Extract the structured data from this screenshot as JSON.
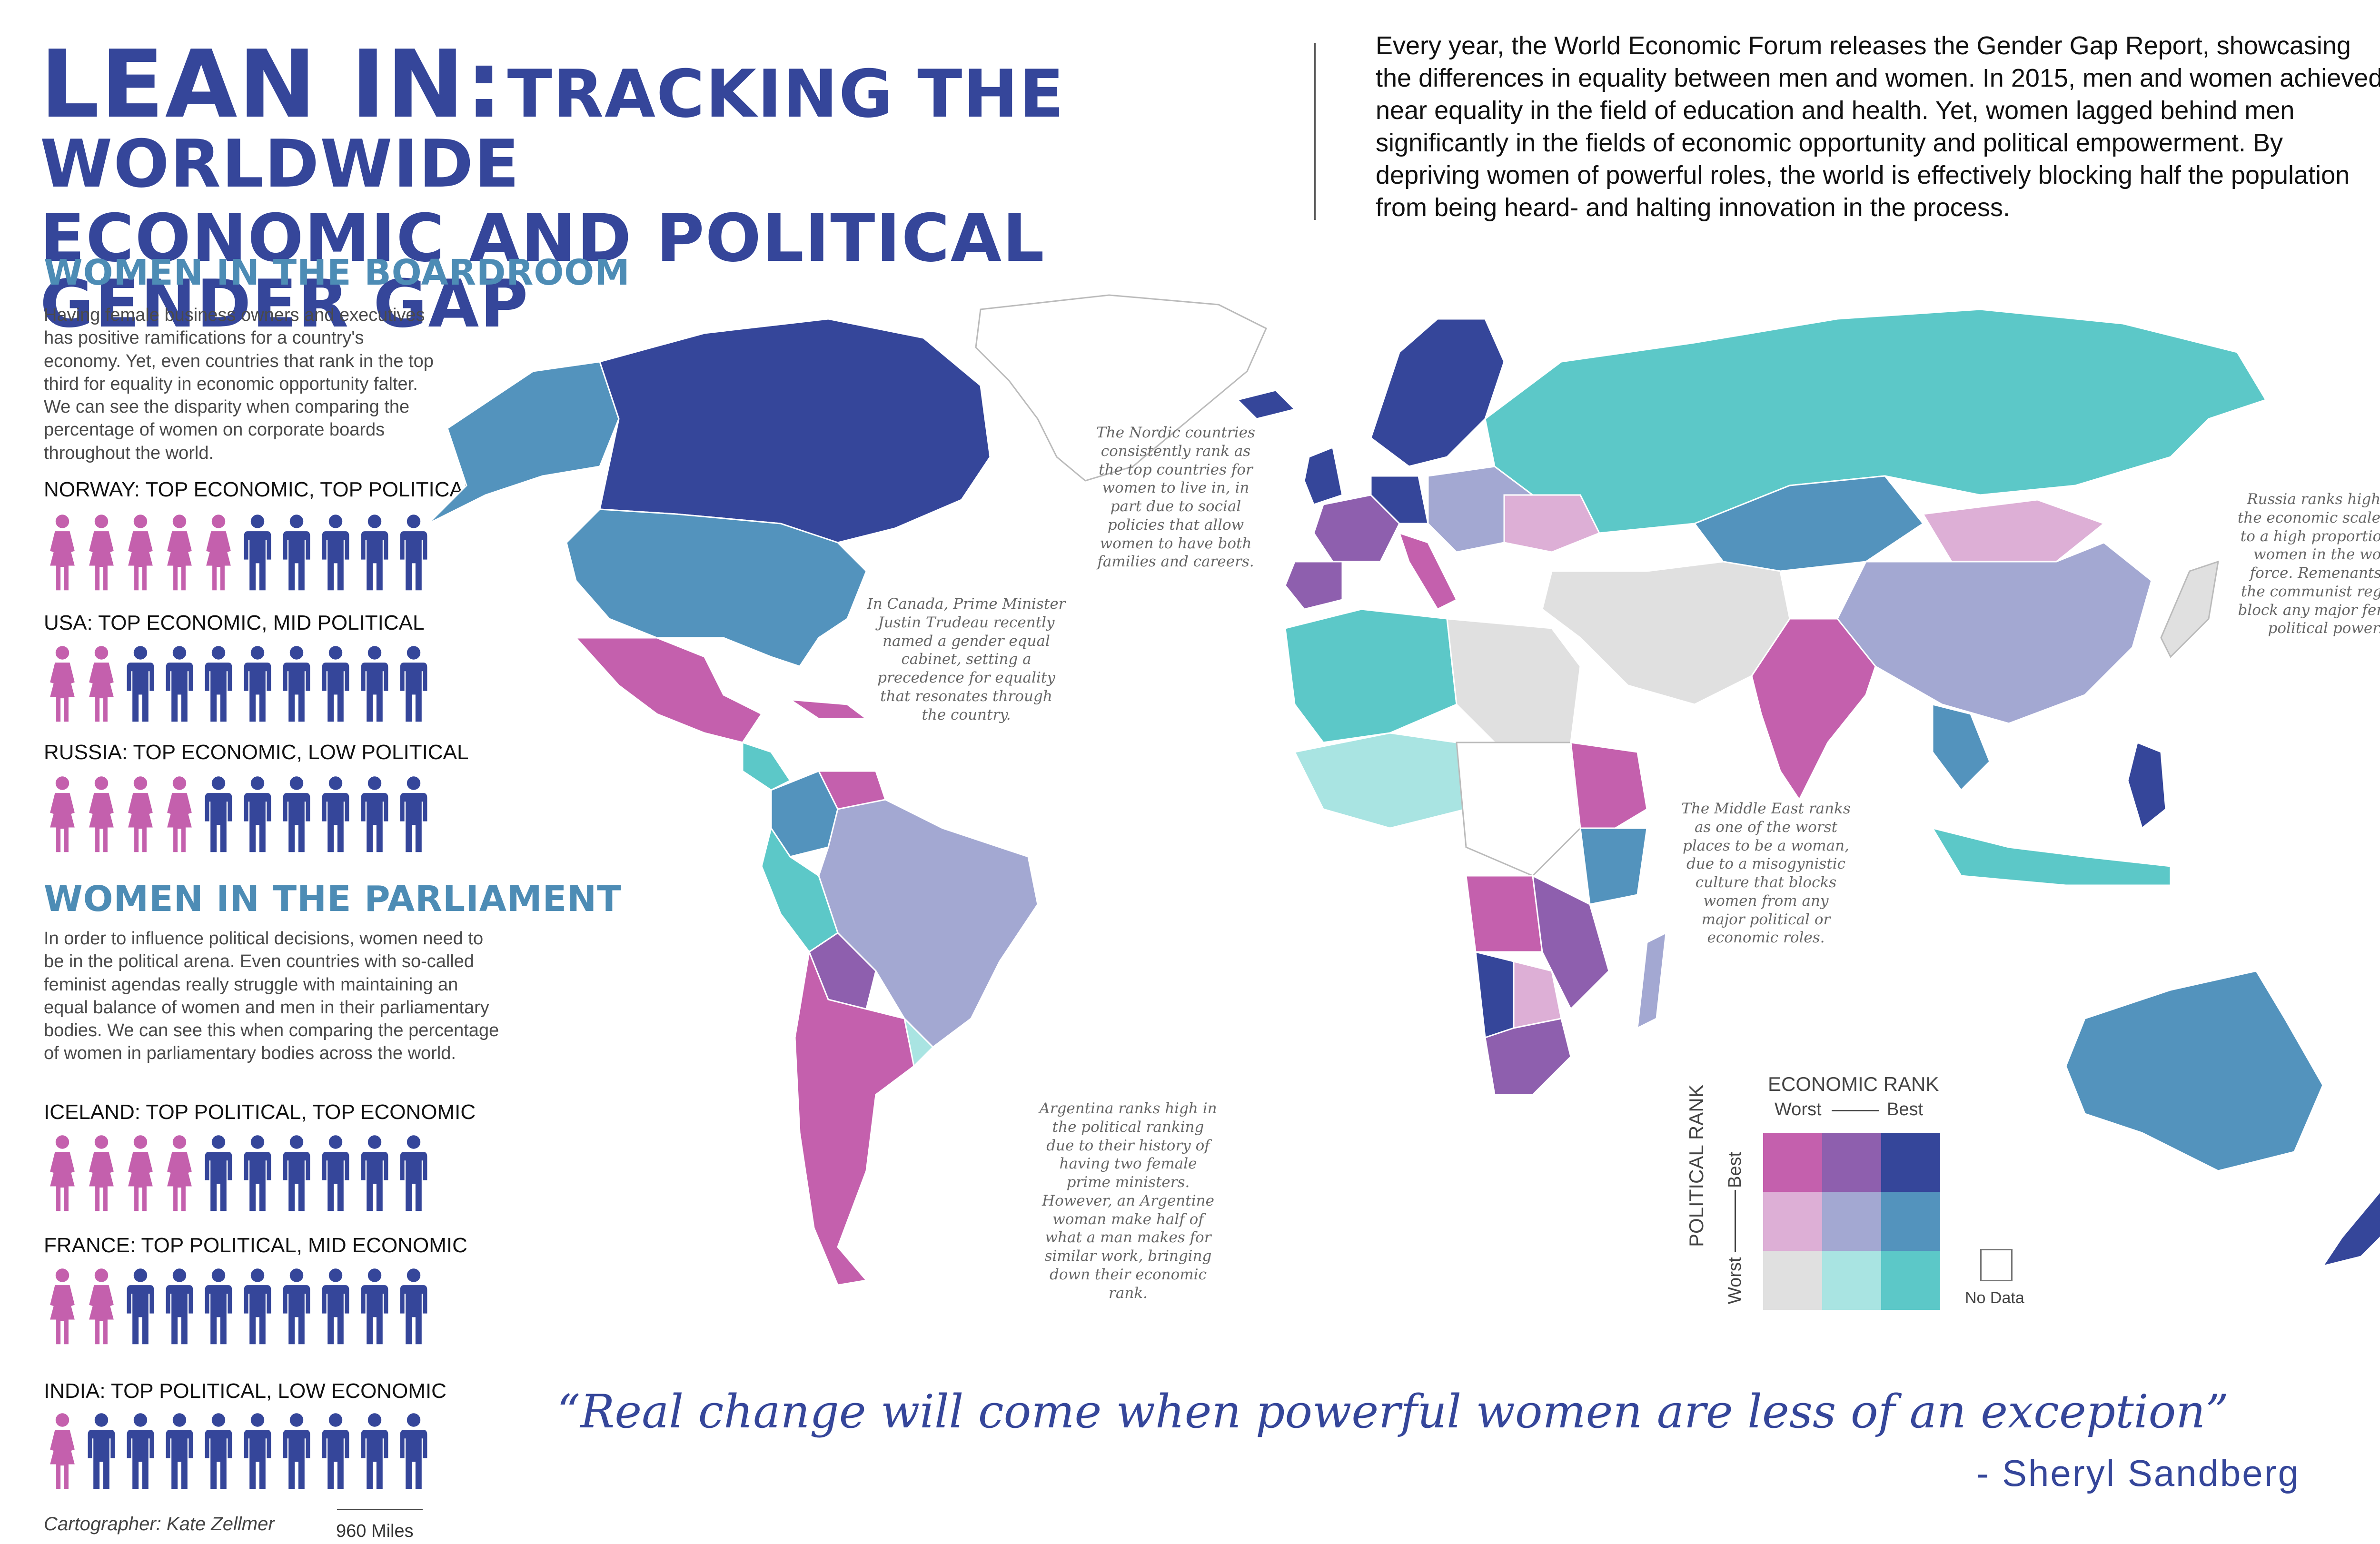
{
  "title": {
    "part1": "LEAN IN:",
    "part2": "TRACKING THE WORLDWIDE",
    "line2": "ECONOMIC AND POLITICAL GENDER GAP"
  },
  "intro": "Every year, the World Economic Forum releases the Gender Gap Report, showcasing the differences in equality between men and women. In 2015, men and women achieved near equality in the field of education and health. Yet, women lagged behind men significantly in the fields of economic opportunity and political empowerment. By depriving women of powerful roles, the world is effectively blocking half the population from being heard- and halting innovation in the process.",
  "boardroom": {
    "heading": "WOMEN IN THE BOARDROOM",
    "text": "Having female business owners and executives has positive ramifications for a country's economy. Yet, even countries that rank in the top third for equality in economic opportunity falter. We can see the disparity when comparing the percentage of women on corporate boards throughout the world.",
    "rows": [
      {
        "label": "NORWAY: TOP ECONOMIC, TOP POLITICAL",
        "women": 5,
        "total": 10
      },
      {
        "label": "USA: TOP ECONOMIC, MID POLITICAL",
        "women": 2,
        "total": 10
      },
      {
        "label": "RUSSIA: TOP ECONOMIC, LOW POLITICAL",
        "women": 4,
        "total": 10
      }
    ]
  },
  "parliament": {
    "heading": "WOMEN IN THE PARLIAMENT",
    "text": "In order to influence political decisions, women need to be in the political arena. Even countries with so-called feminist agendas really struggle with maintaining an equal balance of women and men in their parliamentary bodies. We can see this when comparing the percentage of women in parliamentary bodies across the world.",
    "rows": [
      {
        "label": "ICELAND: TOP POLITICAL, TOP ECONOMIC",
        "women": 4,
        "total": 10
      },
      {
        "label": "FRANCE: TOP POLITICAL, MID ECONOMIC",
        "women": 2,
        "total": 10
      },
      {
        "label": "INDIA: TOP POLITICAL, LOW ECONOMIC",
        "women": 1,
        "total": 10
      }
    ]
  },
  "colors": {
    "woman": "#c460ad",
    "man": "#35469a",
    "best_best": "#35469a",
    "mid_best": "#8e5fae",
    "worst_best": "#c460ad",
    "best_mid": "#5393bd",
    "mid_mid": "#a3a8d2",
    "worst_mid": "#ddafd6",
    "best_worst": "#5cc8c8",
    "mid_worst": "#a9e4e2",
    "worst_worst": "#e0e0e0",
    "no_data": "#ffffff"
  },
  "notes": {
    "nordic": "The Nordic countries consistently rank as the top countries for women to live in, in part due to social policies that allow women to have both families and careers.",
    "canada": "In Canada, Prime Minister Justin Trudeau recently named a gender equal cabinet, setting a precedence for equality that resonates through the country.",
    "russia": "Russia ranks high on the economic scale due to a high proportion of women in the work force. Remenants of the communist regime block any major female political power.",
    "middle_east": "The Middle East ranks as one of the worst places to be a woman, due to a misogynistic culture that blocks women from any major political or economic roles.",
    "argentina": "Argentina ranks high in the political ranking due to their history of having two female prime ministers. However, an Argentine woman make half of what a man makes for similar work, bringing down their economic rank."
  },
  "legend": {
    "title": "ECONOMIC RANK",
    "x_worst": "Worst",
    "x_best": "Best",
    "y_title": "POLITICAL RANK",
    "y_worst": "Worst",
    "y_best": "Best",
    "no_data": "No Data"
  },
  "quote": {
    "text": "“Real change will come when powerful women are less of an exception”",
    "author": "- Sheryl Sandberg"
  },
  "credit": "Cartographer: Kate Zellmer",
  "scale": "960 Miles"
}
